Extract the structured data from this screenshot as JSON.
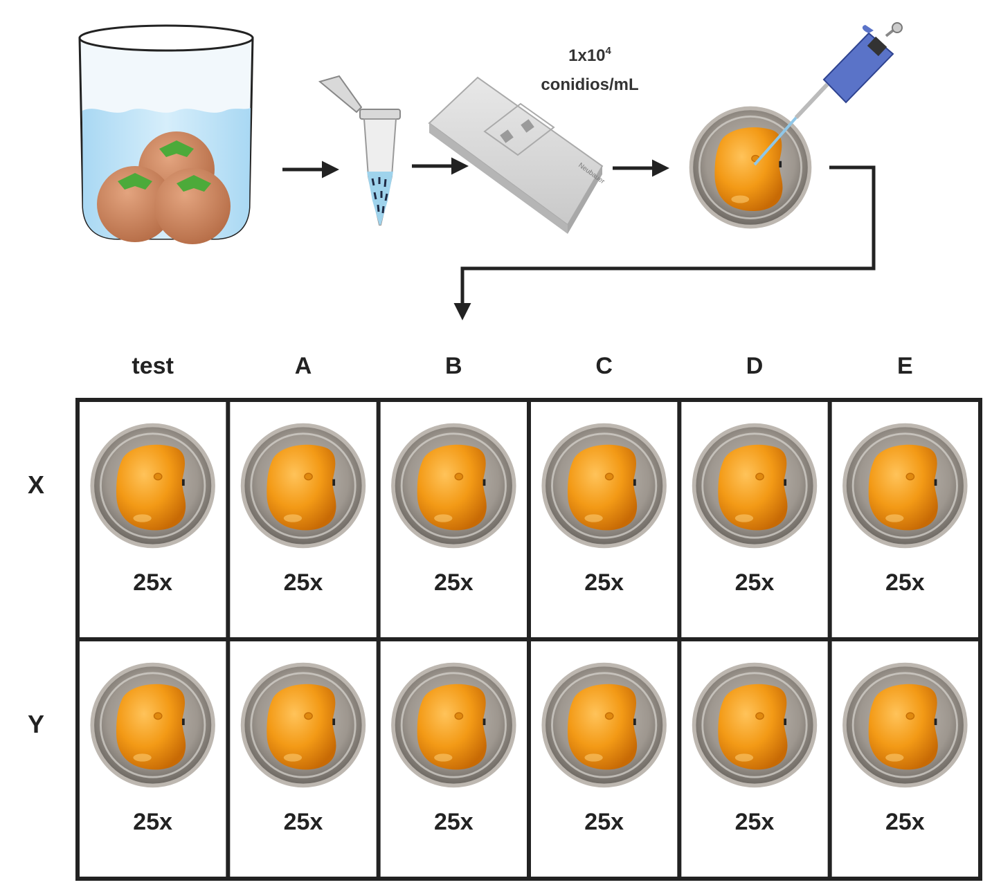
{
  "concentration": {
    "value": "1x10",
    "exponent": "4",
    "unit": "conidios/mL"
  },
  "slide_brand": "Neubauer",
  "columns": [
    "test",
    "A",
    "B",
    "C",
    "D",
    "E"
  ],
  "rows": [
    {
      "label": "X",
      "cells": [
        "25x",
        "25x",
        "25x",
        "25x",
        "25x",
        "25x"
      ]
    },
    {
      "label": "Y",
      "cells": [
        "25x",
        "25x",
        "25x",
        "25x",
        "25x",
        "25x"
      ]
    }
  ],
  "colors": {
    "water": "#bfe3f7",
    "persimmon": "#c97e57",
    "leaf": "#4caa3a",
    "fruit_orange": "#f09a1a",
    "dish": "#9a948c",
    "pipette": "#5a73c8",
    "line": "#222222"
  }
}
